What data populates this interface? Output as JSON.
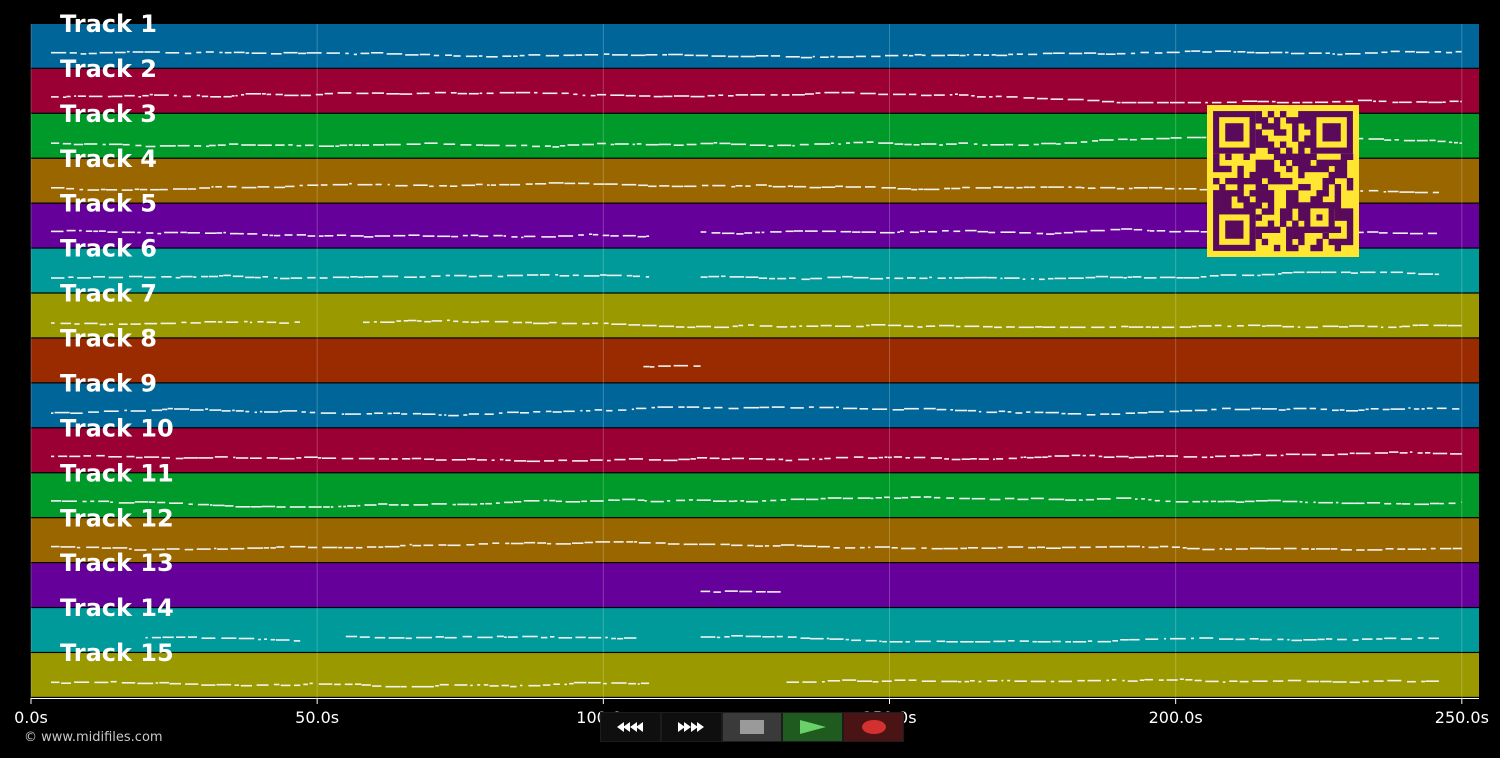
{
  "app": {
    "copyright": "© www.midifiles.com"
  },
  "timeline": {
    "start": 0,
    "end": 253,
    "ticks": [
      {
        "value": 0,
        "label": "0.0s"
      },
      {
        "value": 50,
        "label": "50.0s"
      },
      {
        "value": 100,
        "label": "100.0s"
      },
      {
        "value": 150,
        "label": "150.0s"
      },
      {
        "value": 200,
        "label": "200.0s"
      },
      {
        "value": 250,
        "label": "250.0s"
      }
    ]
  },
  "tracks": [
    {
      "label": "Track 1",
      "color": "#00669a",
      "note_ranges": [
        [
          3.5,
          250
        ]
      ]
    },
    {
      "label": "Track 2",
      "color": "#9a0033",
      "note_ranges": [
        [
          3.5,
          250
        ]
      ]
    },
    {
      "label": "Track 3",
      "color": "#009a2a",
      "note_ranges": [
        [
          3.5,
          250
        ]
      ]
    },
    {
      "label": "Track 4",
      "color": "#9a6600",
      "note_ranges": [
        [
          3.5,
          246
        ]
      ]
    },
    {
      "label": "Track 5",
      "color": "#66009a",
      "note_ranges": [
        [
          3.5,
          108
        ],
        [
          117,
          246
        ]
      ]
    },
    {
      "label": "Track 6",
      "color": "#009a9a",
      "note_ranges": [
        [
          3.5,
          108
        ],
        [
          117,
          246
        ]
      ]
    },
    {
      "label": "Track 7",
      "color": "#9a9a00",
      "note_ranges": [
        [
          3.5,
          47
        ],
        [
          58,
          250
        ]
      ]
    },
    {
      "label": "Track 8",
      "color": "#9a2a00",
      "note_ranges": [
        [
          107,
          117
        ]
      ]
    },
    {
      "label": "Track 9",
      "color": "#00669a",
      "note_ranges": [
        [
          3.5,
          250
        ]
      ]
    },
    {
      "label": "Track 10",
      "color": "#9a0033",
      "note_ranges": [
        [
          3.5,
          250
        ]
      ]
    },
    {
      "label": "Track 11",
      "color": "#009a2a",
      "note_ranges": [
        [
          3.5,
          250
        ]
      ]
    },
    {
      "label": "Track 12",
      "color": "#9a6600",
      "note_ranges": [
        [
          3.5,
          250
        ]
      ]
    },
    {
      "label": "Track 13",
      "color": "#66009a",
      "note_ranges": [
        [
          117,
          131
        ]
      ]
    },
    {
      "label": "Track 14",
      "color": "#009a9a",
      "note_ranges": [
        [
          20,
          48
        ],
        [
          55,
          106
        ],
        [
          117,
          246
        ]
      ]
    },
    {
      "label": "Track 15",
      "color": "#9a9a00",
      "note_ranges": [
        [
          3.5,
          108
        ],
        [
          132,
          246
        ]
      ]
    }
  ],
  "qr_code": {
    "fg": "#5a0a5a",
    "bg": "#ffe633"
  },
  "toolbar": {
    "buttons": [
      {
        "name": "rewind-button",
        "icon": "rewind-icon",
        "bg": "#0f0f0f",
        "fg": "#ffffff"
      },
      {
        "name": "fast-forward-button",
        "icon": "fast-forward-icon",
        "bg": "#0f0f0f",
        "fg": "#ffffff"
      },
      {
        "name": "stop-button",
        "icon": "stop-icon",
        "bg": "#3a3a3a",
        "fg": "#9a9a9a"
      },
      {
        "name": "play-button",
        "icon": "play-icon",
        "bg": "#1f5a1f",
        "fg": "#6ad06a"
      },
      {
        "name": "record-button",
        "icon": "record-icon",
        "bg": "#4a1414",
        "fg": "#d43030"
      }
    ]
  }
}
